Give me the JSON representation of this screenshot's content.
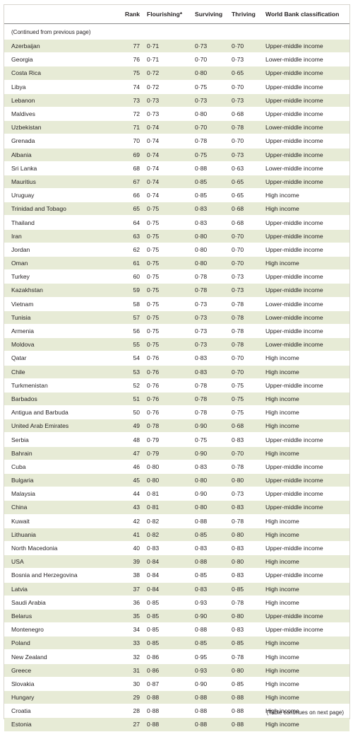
{
  "headers": {
    "country": "",
    "rank": "Rank",
    "flourishing": "Flourishing*",
    "surviving": "Surviving",
    "thriving": "Thriving",
    "wb": "World Bank classification"
  },
  "continued_note": "(Continued from previous page)",
  "footer_note": "(Table continues on next page)",
  "rows": [
    [
      "Azerbaijan",
      "77",
      "0·71",
      "0·73",
      "0·70",
      "Upper-middle income"
    ],
    [
      "Georgia",
      "76",
      "0·71",
      "0·70",
      "0·73",
      "Lower-middle income"
    ],
    [
      "Costa Rica",
      "75",
      "0·72",
      "0·80",
      "0·65",
      "Upper-middle income"
    ],
    [
      "Libya",
      "74",
      "0·72",
      "0·75",
      "0·70",
      "Upper-middle income"
    ],
    [
      "Lebanon",
      "73",
      "0·73",
      "0·73",
      "0·73",
      "Upper-middle income"
    ],
    [
      "Maldives",
      "72",
      "0·73",
      "0·80",
      "0·68",
      "Upper-middle income"
    ],
    [
      "Uzbekistan",
      "71",
      "0·74",
      "0·70",
      "0·78",
      "Lower-middle income"
    ],
    [
      "Grenada",
      "70",
      "0·74",
      "0·78",
      "0·70",
      "Upper-middle income"
    ],
    [
      "Albania",
      "69",
      "0·74",
      "0·75",
      "0·73",
      "Upper-middle income"
    ],
    [
      "Sri Lanka",
      "68",
      "0·74",
      "0·88",
      "0·63",
      "Lower-middle income"
    ],
    [
      "Mauritius",
      "67",
      "0·74",
      "0·85",
      "0·65",
      "Upper-middle income"
    ],
    [
      "Uruguay",
      "66",
      "0·74",
      "0·85",
      "0·65",
      "High income"
    ],
    [
      "Trinidad and Tobago",
      "65",
      "0·75",
      "0·83",
      "0·68",
      "High income"
    ],
    [
      "Thailand",
      "64",
      "0·75",
      "0·83",
      "0·68",
      "Upper-middle income"
    ],
    [
      "Iran",
      "63",
      "0·75",
      "0·80",
      "0·70",
      "Upper-middle income"
    ],
    [
      "Jordan",
      "62",
      "0·75",
      "0·80",
      "0·70",
      "Upper-middle income"
    ],
    [
      "Oman",
      "61",
      "0·75",
      "0·80",
      "0·70",
      "High income"
    ],
    [
      "Turkey",
      "60",
      "0·75",
      "0·78",
      "0·73",
      "Upper-middle income"
    ],
    [
      "Kazakhstan",
      "59",
      "0·75",
      "0·78",
      "0·73",
      "Upper-middle income"
    ],
    [
      "Vietnam",
      "58",
      "0·75",
      "0·73",
      "0·78",
      "Lower-middle income"
    ],
    [
      "Tunisia",
      "57",
      "0·75",
      "0·73",
      "0·78",
      "Lower-middle income"
    ],
    [
      "Armenia",
      "56",
      "0·75",
      "0·73",
      "0·78",
      "Upper-middle income"
    ],
    [
      "Moldova",
      "55",
      "0·75",
      "0·73",
      "0·78",
      "Lower-middle income"
    ],
    [
      "Qatar",
      "54",
      "0·76",
      "0·83",
      "0·70",
      "High income"
    ],
    [
      "Chile",
      "53",
      "0·76",
      "0·83",
      "0·70",
      "High income"
    ],
    [
      "Turkmenistan",
      "52",
      "0·76",
      "0·78",
      "0·75",
      "Upper-middle income"
    ],
    [
      "Barbados",
      "51",
      "0·76",
      "0·78",
      "0·75",
      "High income"
    ],
    [
      "Antigua and Barbuda",
      "50",
      "0·76",
      "0·78",
      "0·75",
      "High income"
    ],
    [
      "United Arab Emirates",
      "49",
      "0·78",
      "0·90",
      "0·68",
      "High income"
    ],
    [
      "Serbia",
      "48",
      "0·79",
      "0·75",
      "0·83",
      "Upper-middle income"
    ],
    [
      "Bahrain",
      "47",
      "0·79",
      "0·90",
      "0·70",
      "High income"
    ],
    [
      "Cuba",
      "46",
      "0·80",
      "0·83",
      "0·78",
      "Upper-middle income"
    ],
    [
      "Bulgaria",
      "45",
      "0·80",
      "0·80",
      "0·80",
      "Upper-middle income"
    ],
    [
      "Malaysia",
      "44",
      "0·81",
      "0·90",
      "0·73",
      "Upper-middle income"
    ],
    [
      "China",
      "43",
      "0·81",
      "0·80",
      "0·83",
      "Upper-middle income"
    ],
    [
      "Kuwait",
      "42",
      "0·82",
      "0·88",
      "0·78",
      "High income"
    ],
    [
      "Lithuania",
      "41",
      "0·82",
      "0·85",
      "0·80",
      "High income"
    ],
    [
      "North Macedonia",
      "40",
      "0·83",
      "0·83",
      "0·83",
      "Upper-middle income"
    ],
    [
      "USA",
      "39",
      "0·84",
      "0·88",
      "0·80",
      "High income"
    ],
    [
      "Bosnia and Herzegovina",
      "38",
      "0·84",
      "0·85",
      "0·83",
      "Upper-middle income"
    ],
    [
      "Latvia",
      "37",
      "0·84",
      "0·83",
      "0·85",
      "High income"
    ],
    [
      "Saudi Arabia",
      "36",
      "0·85",
      "0·93",
      "0·78",
      "High income"
    ],
    [
      "Belarus",
      "35",
      "0·85",
      "0·90",
      "0·80",
      "Upper-middle income"
    ],
    [
      "Montenegro",
      "34",
      "0·85",
      "0·88",
      "0·83",
      "Upper-middle income"
    ],
    [
      "Poland",
      "33",
      "0·85",
      "0·85",
      "0·85",
      "High income"
    ],
    [
      "New Zealand",
      "32",
      "0·86",
      "0·95",
      "0·78",
      "High income"
    ],
    [
      "Greece",
      "31",
      "0·86",
      "0·93",
      "0·80",
      "High income"
    ],
    [
      "Slovakia",
      "30",
      "0·87",
      "0·90",
      "0·85",
      "High income"
    ],
    [
      "Hungary",
      "29",
      "0·88",
      "0·88",
      "0·88",
      "High income"
    ],
    [
      "Croatia",
      "28",
      "0·88",
      "0·88",
      "0·88",
      "High income"
    ],
    [
      "Estonia",
      "27",
      "0·88",
      "0·88",
      "0·88",
      "High income"
    ]
  ]
}
